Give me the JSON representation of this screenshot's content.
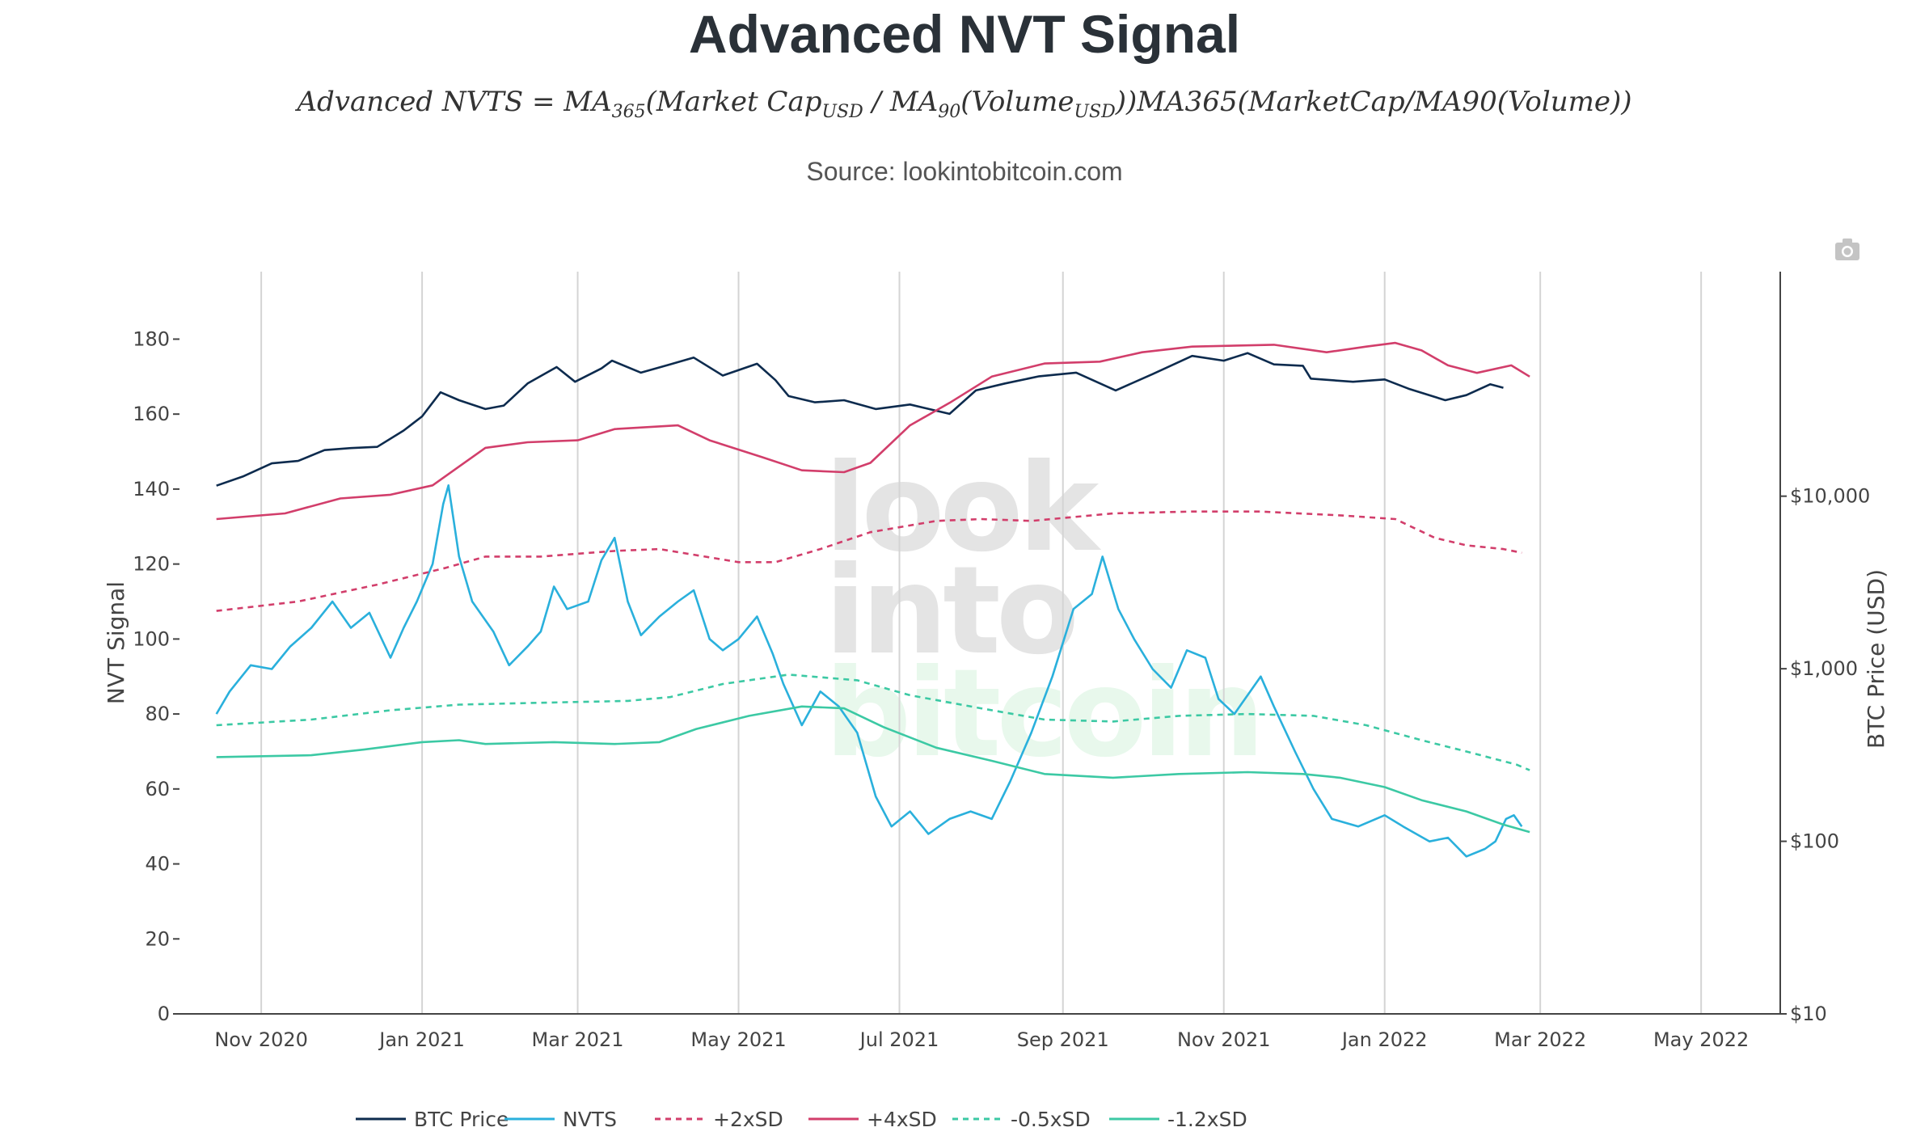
{
  "header": {
    "title": "Advanced NVT Signal",
    "formula_main": "Advanced NVTS = MA",
    "formula_sub1": "365",
    "formula_mid": "(Market Cap",
    "formula_sub2": "USD",
    "formula_mid2": " / MA",
    "formula_sub3": "90",
    "formula_mid3": "(Volume",
    "formula_sub4": "USD",
    "formula_tail": "))MA365(MarketCap/MA90(Volume))",
    "source": "Source: lookintobitcoin.com"
  },
  "watermark": [
    "look",
    "into",
    "bitcoin"
  ],
  "toolbar": {
    "camera_icon": "camera-icon"
  },
  "chart_data": {
    "type": "line",
    "x_range": [
      "2020-10-01",
      "2022-05-31"
    ],
    "x_ticks": [
      {
        "date": "2020-11-01",
        "label": "Nov 2020"
      },
      {
        "date": "2021-01-01",
        "label": "Jan 2021"
      },
      {
        "date": "2021-03-01",
        "label": "Mar 2021"
      },
      {
        "date": "2021-05-01",
        "label": "May 2021"
      },
      {
        "date": "2021-07-01",
        "label": "Jul 2021"
      },
      {
        "date": "2021-09-01",
        "label": "Sep 2021"
      },
      {
        "date": "2021-11-01",
        "label": "Nov 2021"
      },
      {
        "date": "2022-01-01",
        "label": "Jan 2022"
      },
      {
        "date": "2022-03-01",
        "label": "Mar 2022"
      },
      {
        "date": "2022-05-01",
        "label": "May 2022"
      }
    ],
    "y_left": {
      "label": "NVT Signal",
      "range": [
        0,
        198
      ],
      "ticks": [
        0,
        20,
        40,
        60,
        80,
        100,
        120,
        140,
        160,
        180
      ]
    },
    "y_right": {
      "label": "BTC Price (USD)",
      "scale": "log",
      "range": [
        10,
        200000
      ],
      "ticks": [
        {
          "value": 10,
          "label": "$10"
        },
        {
          "value": 100,
          "label": "$100"
        },
        {
          "value": 1000,
          "label": "$1,000"
        },
        {
          "value": 10000,
          "label": "$10,000"
        }
      ]
    },
    "grid": "vertical",
    "legend_position": "bottom",
    "series": [
      {
        "name": "BTC Price",
        "axis": "right",
        "color": "#0d2b4e",
        "dash": "solid",
        "points": [
          [
            "2020-10-15",
            11500
          ],
          [
            "2020-10-25",
            13000
          ],
          [
            "2020-11-05",
            15500
          ],
          [
            "2020-11-15",
            16000
          ],
          [
            "2020-11-25",
            18500
          ],
          [
            "2020-12-05",
            19000
          ],
          [
            "2020-12-15",
            19300
          ],
          [
            "2020-12-25",
            24000
          ],
          [
            "2021-01-01",
            29000
          ],
          [
            "2021-01-08",
            40000
          ],
          [
            "2021-01-15",
            36000
          ],
          [
            "2021-01-25",
            32000
          ],
          [
            "2021-02-01",
            33500
          ],
          [
            "2021-02-10",
            45000
          ],
          [
            "2021-02-21",
            56000
          ],
          [
            "2021-02-28",
            46000
          ],
          [
            "2021-03-10",
            55000
          ],
          [
            "2021-03-14",
            61000
          ],
          [
            "2021-03-25",
            52000
          ],
          [
            "2021-04-05",
            58000
          ],
          [
            "2021-04-14",
            63500
          ],
          [
            "2021-04-25",
            50000
          ],
          [
            "2021-05-08",
            58500
          ],
          [
            "2021-05-15",
            47000
          ],
          [
            "2021-05-20",
            38000
          ],
          [
            "2021-05-30",
            35000
          ],
          [
            "2021-06-10",
            36000
          ],
          [
            "2021-06-22",
            32000
          ],
          [
            "2021-07-05",
            34000
          ],
          [
            "2021-07-20",
            30000
          ],
          [
            "2021-07-30",
            41000
          ],
          [
            "2021-08-10",
            45000
          ],
          [
            "2021-08-23",
            49500
          ],
          [
            "2021-09-06",
            52000
          ],
          [
            "2021-09-21",
            41000
          ],
          [
            "2021-10-05",
            51000
          ],
          [
            "2021-10-20",
            65000
          ],
          [
            "2021-11-01",
            61000
          ],
          [
            "2021-11-10",
            67500
          ],
          [
            "2021-11-20",
            58000
          ],
          [
            "2021-12-01",
            57000
          ],
          [
            "2021-12-04",
            48000
          ],
          [
            "2021-12-20",
            46000
          ],
          [
            "2022-01-01",
            47500
          ],
          [
            "2022-01-10",
            42000
          ],
          [
            "2022-01-24",
            36000
          ],
          [
            "2022-02-01",
            38500
          ],
          [
            "2022-02-10",
            44500
          ],
          [
            "2022-02-15",
            42500
          ]
        ]
      },
      {
        "name": "NVTS",
        "axis": "left",
        "color": "#2ab0dc",
        "dash": "solid",
        "points": [
          [
            "2020-10-15",
            80
          ],
          [
            "2020-10-20",
            86
          ],
          [
            "2020-10-28",
            93
          ],
          [
            "2020-11-05",
            92
          ],
          [
            "2020-11-12",
            98
          ],
          [
            "2020-11-20",
            103
          ],
          [
            "2020-11-28",
            110
          ],
          [
            "2020-12-05",
            103
          ],
          [
            "2020-12-12",
            107
          ],
          [
            "2020-12-20",
            95
          ],
          [
            "2020-12-25",
            103
          ],
          [
            "2020-12-30",
            110
          ],
          [
            "2021-01-05",
            120
          ],
          [
            "2021-01-09",
            136
          ],
          [
            "2021-01-11",
            141
          ],
          [
            "2021-01-15",
            122
          ],
          [
            "2021-01-20",
            110
          ],
          [
            "2021-01-28",
            102
          ],
          [
            "2021-02-03",
            93
          ],
          [
            "2021-02-10",
            98
          ],
          [
            "2021-02-15",
            102
          ],
          [
            "2021-02-20",
            114
          ],
          [
            "2021-02-25",
            108
          ],
          [
            "2021-03-05",
            110
          ],
          [
            "2021-03-10",
            121
          ],
          [
            "2021-03-15",
            127
          ],
          [
            "2021-03-20",
            110
          ],
          [
            "2021-03-25",
            101
          ],
          [
            "2021-04-01",
            106
          ],
          [
            "2021-04-08",
            110
          ],
          [
            "2021-04-14",
            113
          ],
          [
            "2021-04-20",
            100
          ],
          [
            "2021-04-25",
            97
          ],
          [
            "2021-05-01",
            100
          ],
          [
            "2021-05-08",
            106
          ],
          [
            "2021-05-14",
            96
          ],
          [
            "2021-05-18",
            88
          ],
          [
            "2021-05-25",
            77
          ],
          [
            "2021-06-01",
            86
          ],
          [
            "2021-06-08",
            82
          ],
          [
            "2021-06-15",
            75
          ],
          [
            "2021-06-22",
            58
          ],
          [
            "2021-06-28",
            50
          ],
          [
            "2021-07-05",
            54
          ],
          [
            "2021-07-12",
            48
          ],
          [
            "2021-07-20",
            52
          ],
          [
            "2021-07-28",
            54
          ],
          [
            "2021-08-05",
            52
          ],
          [
            "2021-08-12",
            62
          ],
          [
            "2021-08-20",
            75
          ],
          [
            "2021-08-28",
            90
          ],
          [
            "2021-09-05",
            108
          ],
          [
            "2021-09-12",
            112
          ],
          [
            "2021-09-16",
            122
          ],
          [
            "2021-09-22",
            108
          ],
          [
            "2021-09-28",
            100
          ],
          [
            "2021-10-05",
            92
          ],
          [
            "2021-10-12",
            87
          ],
          [
            "2021-10-18",
            97
          ],
          [
            "2021-10-25",
            95
          ],
          [
            "2021-10-30",
            84
          ],
          [
            "2021-11-05",
            80
          ],
          [
            "2021-11-15",
            90
          ],
          [
            "2021-11-20",
            82
          ],
          [
            "2021-11-28",
            70
          ],
          [
            "2021-12-05",
            60
          ],
          [
            "2021-12-12",
            52
          ],
          [
            "2021-12-22",
            50
          ],
          [
            "2022-01-01",
            53
          ],
          [
            "2022-01-08",
            50
          ],
          [
            "2022-01-18",
            46
          ],
          [
            "2022-01-25",
            47
          ],
          [
            "2022-02-01",
            42
          ],
          [
            "2022-02-08",
            44
          ],
          [
            "2022-02-12",
            46
          ],
          [
            "2022-02-16",
            52
          ],
          [
            "2022-02-19",
            53
          ],
          [
            "2022-02-22",
            50
          ]
        ]
      },
      {
        "name": "+2xSD",
        "axis": "left",
        "color": "#d23e6b",
        "dash": "dashed",
        "points": [
          [
            "2020-10-15",
            107.5
          ],
          [
            "2020-11-15",
            110
          ],
          [
            "2020-12-15",
            114.5
          ],
          [
            "2021-01-10",
            119
          ],
          [
            "2021-01-25",
            122
          ],
          [
            "2021-02-15",
            122
          ],
          [
            "2021-03-15",
            123.5
          ],
          [
            "2021-04-01",
            124
          ],
          [
            "2021-05-01",
            120.5
          ],
          [
            "2021-05-15",
            120.5
          ],
          [
            "2021-06-01",
            124
          ],
          [
            "2021-06-20",
            128.5
          ],
          [
            "2021-07-15",
            131.5
          ],
          [
            "2021-08-01",
            132
          ],
          [
            "2021-08-20",
            131.5
          ],
          [
            "2021-09-20",
            133.5
          ],
          [
            "2021-10-20",
            134
          ],
          [
            "2021-11-15",
            134
          ],
          [
            "2021-12-15",
            133
          ],
          [
            "2022-01-05",
            132
          ],
          [
            "2022-01-20",
            127
          ],
          [
            "2022-02-01",
            125
          ],
          [
            "2022-02-15",
            124
          ],
          [
            "2022-02-22",
            123
          ]
        ]
      },
      {
        "name": "+4xSD",
        "axis": "left",
        "color": "#d23e6b",
        "dash": "solid",
        "points": [
          [
            "2020-10-15",
            132
          ],
          [
            "2020-11-10",
            133.5
          ],
          [
            "2020-12-01",
            137.5
          ],
          [
            "2020-12-20",
            138.5
          ],
          [
            "2021-01-05",
            141
          ],
          [
            "2021-01-15",
            146
          ],
          [
            "2021-01-25",
            151
          ],
          [
            "2021-02-10",
            152.5
          ],
          [
            "2021-03-01",
            153
          ],
          [
            "2021-03-15",
            156
          ],
          [
            "2021-04-08",
            157
          ],
          [
            "2021-04-20",
            153
          ],
          [
            "2021-05-10",
            148.5
          ],
          [
            "2021-05-25",
            145
          ],
          [
            "2021-06-10",
            144.5
          ],
          [
            "2021-06-20",
            147
          ],
          [
            "2021-07-05",
            157
          ],
          [
            "2021-07-20",
            163
          ],
          [
            "2021-08-05",
            170
          ],
          [
            "2021-08-25",
            173.5
          ],
          [
            "2021-09-15",
            174
          ],
          [
            "2021-10-01",
            176.5
          ],
          [
            "2021-10-20",
            178
          ],
          [
            "2021-11-20",
            178.5
          ],
          [
            "2021-12-10",
            176.5
          ],
          [
            "2021-12-25",
            178
          ],
          [
            "2022-01-05",
            179
          ],
          [
            "2022-01-15",
            177
          ],
          [
            "2022-01-25",
            173
          ],
          [
            "2022-02-05",
            171
          ],
          [
            "2022-02-18",
            173
          ],
          [
            "2022-02-25",
            170
          ]
        ]
      },
      {
        "name": "-0.5xSD",
        "axis": "left",
        "color": "#3cc9a4",
        "dash": "dashed",
        "points": [
          [
            "2020-10-15",
            77
          ],
          [
            "2020-11-20",
            78.5
          ],
          [
            "2020-12-20",
            81
          ],
          [
            "2021-01-15",
            82.5
          ],
          [
            "2021-02-15",
            83
          ],
          [
            "2021-03-20",
            83.5
          ],
          [
            "2021-04-05",
            84.5
          ],
          [
            "2021-04-25",
            88
          ],
          [
            "2021-05-20",
            90.5
          ],
          [
            "2021-06-15",
            89
          ],
          [
            "2021-07-05",
            85
          ],
          [
            "2021-08-01",
            81.5
          ],
          [
            "2021-08-25",
            78.5
          ],
          [
            "2021-09-20",
            78
          ],
          [
            "2021-10-15",
            79.5
          ],
          [
            "2021-11-10",
            80
          ],
          [
            "2021-12-05",
            79.5
          ],
          [
            "2021-12-25",
            77
          ],
          [
            "2022-01-15",
            73
          ],
          [
            "2022-02-01",
            70
          ],
          [
            "2022-02-20",
            66.5
          ],
          [
            "2022-02-25",
            65
          ]
        ]
      },
      {
        "name": "-1.2xSD",
        "axis": "left",
        "color": "#3cc9a4",
        "dash": "solid",
        "points": [
          [
            "2020-10-15",
            68.5
          ],
          [
            "2020-11-20",
            69
          ],
          [
            "2020-12-10",
            70.5
          ],
          [
            "2021-01-01",
            72.5
          ],
          [
            "2021-01-15",
            73
          ],
          [
            "2021-01-25",
            72
          ],
          [
            "2021-02-20",
            72.5
          ],
          [
            "2021-03-15",
            72
          ],
          [
            "2021-04-01",
            72.5
          ],
          [
            "2021-04-15",
            76
          ],
          [
            "2021-05-05",
            79.5
          ],
          [
            "2021-05-25",
            82
          ],
          [
            "2021-06-10",
            81.5
          ],
          [
            "2021-06-25",
            76.5
          ],
          [
            "2021-07-15",
            71
          ],
          [
            "2021-08-05",
            67.5
          ],
          [
            "2021-08-25",
            64
          ],
          [
            "2021-09-20",
            63
          ],
          [
            "2021-10-15",
            64
          ],
          [
            "2021-11-10",
            64.5
          ],
          [
            "2021-12-01",
            64
          ],
          [
            "2021-12-15",
            63
          ],
          [
            "2022-01-01",
            60.5
          ],
          [
            "2022-01-15",
            57
          ],
          [
            "2022-02-01",
            54
          ],
          [
            "2022-02-15",
            50.5
          ],
          [
            "2022-02-25",
            48.5
          ]
        ]
      }
    ]
  }
}
